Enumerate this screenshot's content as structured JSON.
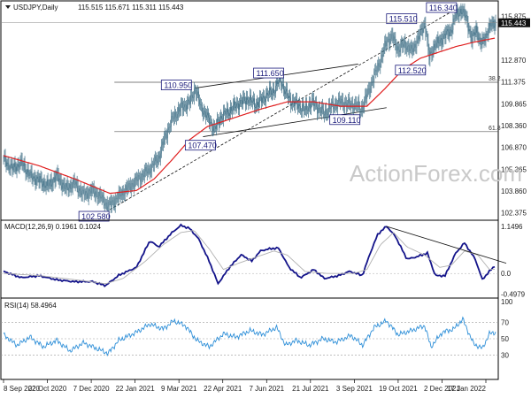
{
  "header": {
    "symbol": "USDJPY,Daily",
    "ohlc": "115.515 115.671 115.311 115.443",
    "last_price": "115.443"
  },
  "watermark": "ActionForex.com",
  "colors": {
    "candle": "#3f6f86",
    "sma": "#e02020",
    "macd_line": "#14148a",
    "signal_line": "#b0b0b0",
    "rsi_line": "#2e8fd8",
    "box_border": "#1a1a7a",
    "grid": "#888888",
    "last_price_box": "#111111"
  },
  "chart_data": [
    {
      "type": "candlestick",
      "title": "USDJPY,Daily",
      "y_ticks": [
        "115.875",
        "115.443",
        "112.870",
        "111.375",
        "109.865",
        "108.360",
        "106.870",
        "105.365",
        "103.860",
        "102.375"
      ],
      "y_tick_values": [
        115.875,
        115.443,
        112.87,
        111.375,
        109.865,
        108.36,
        106.87,
        105.365,
        103.86,
        102.375
      ],
      "ylim": [
        101.85,
        116.95
      ],
      "x_ticks": [
        "8 Sep 2020",
        "22 Oct 2020",
        "7 Dec 2020",
        "22 Jan 2021",
        "9 Mar 2021",
        "22 Apr 2021",
        "7 Jun 2021",
        "21 Jul 2021",
        "3 Sep 2021",
        "19 Oct 2021",
        "2 Dec 2021",
        "17 Jan 2022"
      ],
      "close_waypoints": [
        [
          0,
          106.0
        ],
        [
          10,
          105.4
        ],
        [
          20,
          105.8
        ],
        [
          30,
          104.9
        ],
        [
          40,
          104.6
        ],
        [
          50,
          104.2
        ],
        [
          60,
          104.9
        ],
        [
          70,
          104.0
        ],
        [
          80,
          104.4
        ],
        [
          90,
          103.6
        ],
        [
          100,
          103.9
        ],
        [
          110,
          103.4
        ],
        [
          118,
          102.8
        ],
        [
          125,
          103.2
        ],
        [
          135,
          103.8
        ],
        [
          150,
          104.6
        ],
        [
          165,
          105.4
        ],
        [
          175,
          106.2
        ],
        [
          182,
          107.6
        ],
        [
          190,
          108.8
        ],
        [
          200,
          109.6
        ],
        [
          210,
          110.0
        ],
        [
          216,
          110.9
        ],
        [
          222,
          109.7
        ],
        [
          230,
          108.9
        ],
        [
          238,
          108.1
        ],
        [
          244,
          108.9
        ],
        [
          255,
          109.4
        ],
        [
          265,
          109.9
        ],
        [
          275,
          110.2
        ],
        [
          285,
          109.8
        ],
        [
          295,
          110.4
        ],
        [
          305,
          110.8
        ],
        [
          312,
          111.6
        ],
        [
          318,
          110.6
        ],
        [
          325,
          110.0
        ],
        [
          332,
          109.8
        ],
        [
          340,
          109.4
        ],
        [
          348,
          110.0
        ],
        [
          356,
          109.5
        ],
        [
          362,
          109.2
        ],
        [
          370,
          109.7
        ],
        [
          380,
          110.0
        ],
        [
          390,
          109.8
        ],
        [
          398,
          109.8
        ],
        [
          403,
          109.4
        ],
        [
          410,
          110.5
        ],
        [
          418,
          111.8
        ],
        [
          426,
          113.0
        ],
        [
          432,
          114.2
        ],
        [
          438,
          114.5
        ],
        [
          445,
          113.6
        ],
        [
          452,
          114.0
        ],
        [
          460,
          113.5
        ],
        [
          468,
          114.4
        ],
        [
          475,
          115.5
        ],
        [
          480,
          113.0
        ],
        [
          485,
          113.8
        ],
        [
          492,
          114.2
        ],
        [
          498,
          114.6
        ],
        [
          505,
          115.0
        ],
        [
          510,
          116.0
        ],
        [
          516,
          116.3
        ],
        [
          522,
          115.8
        ],
        [
          528,
          114.2
        ],
        [
          533,
          115.1
        ],
        [
          538,
          113.9
        ],
        [
          544,
          114.6
        ],
        [
          550,
          115.3
        ],
        [
          555,
          115.5
        ]
      ],
      "sma_waypoints": [
        [
          0,
          106.3
        ],
        [
          40,
          105.6
        ],
        [
          80,
          104.7
        ],
        [
          120,
          103.7
        ],
        [
          150,
          103.9
        ],
        [
          170,
          104.7
        ],
        [
          190,
          106.0
        ],
        [
          210,
          107.4
        ],
        [
          230,
          108.3
        ],
        [
          260,
          108.9
        ],
        [
          290,
          109.5
        ],
        [
          320,
          110.0
        ],
        [
          350,
          110.0
        ],
        [
          380,
          109.7
        ],
        [
          410,
          109.7
        ],
        [
          430,
          110.9
        ],
        [
          450,
          112.2
        ],
        [
          470,
          113.0
        ],
        [
          490,
          113.4
        ],
        [
          510,
          113.8
        ],
        [
          530,
          114.1
        ],
        [
          555,
          114.4
        ]
      ],
      "levels": [
        {
          "label": "102.580",
          "value": 102.58
        },
        {
          "label": "110.950",
          "value": 110.95
        },
        {
          "label": "107.470",
          "value": 107.47
        },
        {
          "label": "111.650",
          "value": 111.65
        },
        {
          "label": "109.110",
          "value": 109.11
        },
        {
          "label": "115.510",
          "value": 115.51
        },
        {
          "label": "112.520",
          "value": 112.52
        },
        {
          "label": "116.340",
          "value": 116.34
        }
      ],
      "fib_lines": [
        {
          "label": "38.2",
          "value": 111.35
        },
        {
          "label": "61.8",
          "value": 107.95
        }
      ]
    },
    {
      "type": "line",
      "title": "MACD(12,26,9) 0.1961 0.1024",
      "y_ticks": [
        "1.1496",
        "0.0",
        "-0.4979"
      ],
      "y_tick_values": [
        1.1496,
        0.0,
        -0.4979
      ],
      "ylim": [
        -0.6,
        1.3
      ],
      "series": [
        {
          "role": "macd",
          "waypoints": [
            [
              0,
              0.05
            ],
            [
              20,
              -0.1
            ],
            [
              40,
              -0.05
            ],
            [
              60,
              -0.15
            ],
            [
              80,
              -0.2
            ],
            [
              100,
              -0.2
            ],
            [
              115,
              -0.3
            ],
            [
              130,
              -0.05
            ],
            [
              150,
              0.15
            ],
            [
              165,
              0.8
            ],
            [
              175,
              0.65
            ],
            [
              190,
              1.0
            ],
            [
              200,
              1.18
            ],
            [
              210,
              1.1
            ],
            [
              220,
              0.85
            ],
            [
              232,
              0.3
            ],
            [
              242,
              -0.25
            ],
            [
              255,
              0.15
            ],
            [
              268,
              0.45
            ],
            [
              280,
              0.3
            ],
            [
              290,
              0.55
            ],
            [
              300,
              0.6
            ],
            [
              310,
              0.62
            ],
            [
              322,
              0.15
            ],
            [
              335,
              -0.1
            ],
            [
              350,
              0.1
            ],
            [
              362,
              -0.12
            ],
            [
              378,
              -0.05
            ],
            [
              390,
              0.05
            ],
            [
              405,
              -0.05
            ],
            [
              412,
              0.4
            ],
            [
              422,
              0.95
            ],
            [
              432,
              1.15
            ],
            [
              442,
              0.9
            ],
            [
              455,
              0.35
            ],
            [
              465,
              0.4
            ],
            [
              478,
              0.5
            ],
            [
              487,
              -0.05
            ],
            [
              498,
              -0.05
            ],
            [
              510,
              0.5
            ],
            [
              520,
              0.75
            ],
            [
              532,
              0.35
            ],
            [
              540,
              -0.15
            ],
            [
              548,
              0.05
            ],
            [
              555,
              0.2
            ]
          ]
        },
        {
          "role": "signal",
          "waypoints": [
            [
              0,
              0.0
            ],
            [
              40,
              -0.05
            ],
            [
              80,
              -0.15
            ],
            [
              115,
              -0.25
            ],
            [
              135,
              -0.12
            ],
            [
              160,
              0.3
            ],
            [
              180,
              0.7
            ],
            [
              200,
              1.0
            ],
            [
              215,
              1.05
            ],
            [
              232,
              0.6
            ],
            [
              248,
              0.1
            ],
            [
              265,
              0.25
            ],
            [
              285,
              0.4
            ],
            [
              305,
              0.55
            ],
            [
              320,
              0.45
            ],
            [
              340,
              0.05
            ],
            [
              365,
              0.0
            ],
            [
              395,
              0.0
            ],
            [
              410,
              0.1
            ],
            [
              425,
              0.7
            ],
            [
              440,
              1.0
            ],
            [
              455,
              0.65
            ],
            [
              475,
              0.45
            ],
            [
              492,
              0.15
            ],
            [
              505,
              0.2
            ],
            [
              520,
              0.55
            ],
            [
              535,
              0.45
            ],
            [
              548,
              0.1
            ],
            [
              555,
              0.1
            ]
          ]
        },
        {
          "role": "trendline",
          "points": [
            [
              432,
              1.15
            ],
            [
              567,
              0.25
            ]
          ]
        }
      ]
    },
    {
      "type": "line",
      "title": "RSI(14) 58.4964",
      "y_ticks": [
        "100",
        "70",
        "50",
        "30"
      ],
      "y_tick_values": [
        100,
        70,
        50,
        30
      ],
      "ylim": [
        0,
        100
      ],
      "series": [
        {
          "role": "rsi",
          "waypoints": [
            [
              0,
              55
            ],
            [
              15,
              42
            ],
            [
              30,
              52
            ],
            [
              45,
              40
            ],
            [
              60,
              48
            ],
            [
              75,
              35
            ],
            [
              90,
              45
            ],
            [
              105,
              38
            ],
            [
              118,
              32
            ],
            [
              130,
              48
            ],
            [
              150,
              58
            ],
            [
              165,
              68
            ],
            [
              180,
              62
            ],
            [
              192,
              72
            ],
            [
              205,
              66
            ],
            [
              218,
              48
            ],
            [
              232,
              40
            ],
            [
              248,
              56
            ],
            [
              262,
              52
            ],
            [
              278,
              60
            ],
            [
              292,
              55
            ],
            [
              308,
              64
            ],
            [
              318,
              42
            ],
            [
              330,
              48
            ],
            [
              345,
              42
            ],
            [
              360,
              50
            ],
            [
              375,
              46
            ],
            [
              392,
              54
            ],
            [
              405,
              42
            ],
            [
              418,
              64
            ],
            [
              432,
              72
            ],
            [
              445,
              55
            ],
            [
              460,
              60
            ],
            [
              475,
              66
            ],
            [
              482,
              40
            ],
            [
              495,
              58
            ],
            [
              508,
              62
            ],
            [
              518,
              74
            ],
            [
              530,
              44
            ],
            [
              540,
              38
            ],
            [
              548,
              56
            ],
            [
              555,
              58
            ]
          ]
        }
      ]
    }
  ]
}
